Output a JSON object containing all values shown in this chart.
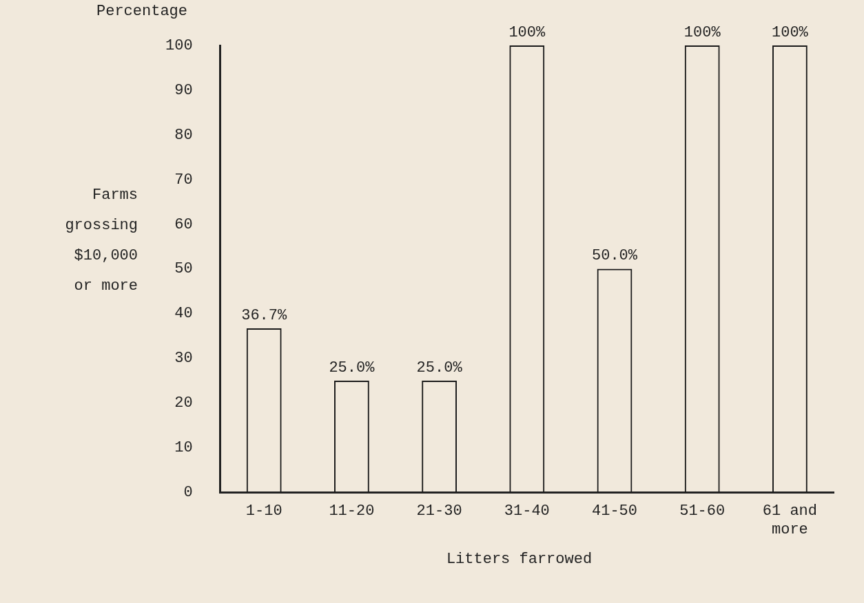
{
  "chart_data": {
    "type": "bar",
    "ylabel": "Farms grossing $10,000 or more",
    "xlabel": "Litters farrowed",
    "annotations": [
      "Percentage"
    ],
    "categories": [
      "1-10",
      "11-20",
      "21-30",
      "31-40",
      "41-50",
      "51-60",
      "61 and more"
    ],
    "values": [
      36.7,
      25.0,
      25.0,
      100,
      50.0,
      100,
      100
    ],
    "value_labels": [
      "36.7%",
      "25.0%",
      "25.0%",
      "100%",
      "50.0%",
      "100%",
      "100%"
    ],
    "color": "#1a1a1a",
    "ylim": [
      0,
      100
    ],
    "yticks": [
      0,
      10,
      20,
      30,
      40,
      50,
      60,
      70,
      80,
      90,
      100
    ],
    "grid": false,
    "legend": false
  }
}
